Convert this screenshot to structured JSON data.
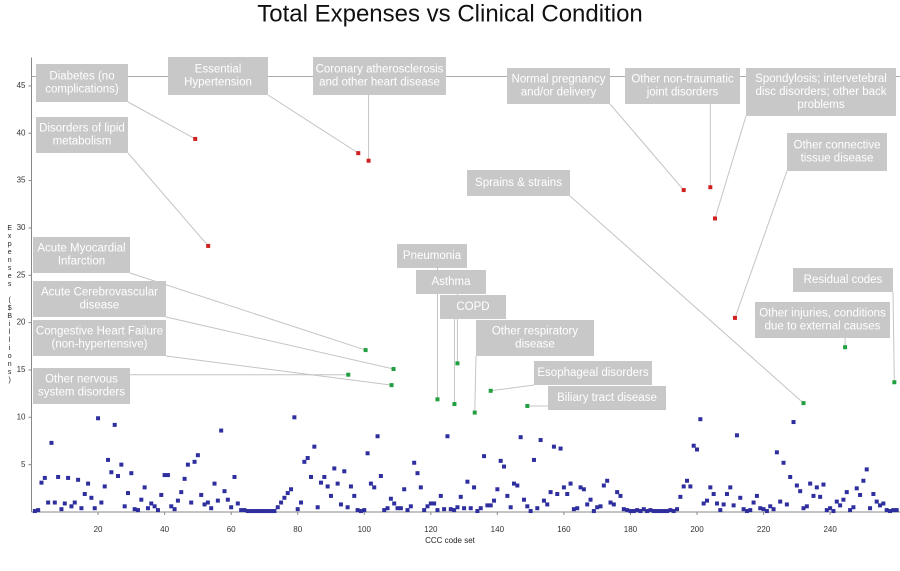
{
  "chart_data": {
    "type": "scatter",
    "title": "Total Expenses vs Clinical Condition",
    "x_label": "CCC code set",
    "y_label": "Expenses ($Billions)",
    "xlim": [
      0,
      261
    ],
    "ylim": [
      0,
      48
    ],
    "xticks": [
      20,
      40,
      60,
      80,
      100,
      120,
      140,
      160,
      180,
      200,
      220,
      240
    ],
    "yticks": [
      5,
      10,
      15,
      20,
      25,
      30,
      35,
      40,
      45
    ],
    "reference_line": 46,
    "series": [
      {
        "color": "#2e2e9e",
        "x": [
          1,
          2,
          3,
          4,
          5,
          6,
          7,
          8,
          9,
          10,
          11,
          12,
          13,
          14,
          15,
          16,
          17,
          18,
          19,
          20,
          21,
          22,
          23,
          24,
          25,
          26,
          27,
          28,
          29,
          30,
          31,
          32,
          33,
          34,
          35,
          36,
          37,
          38,
          39,
          40,
          41,
          42,
          43,
          44,
          45,
          46,
          47,
          48,
          49,
          50,
          51,
          52,
          53,
          54,
          55,
          56,
          57,
          58,
          59,
          60,
          61,
          62,
          63,
          64,
          65,
          66,
          67,
          68,
          69,
          70,
          71,
          72,
          73,
          74,
          75,
          76,
          77,
          78,
          79,
          80,
          81,
          82,
          83,
          84,
          85,
          86,
          87,
          88,
          89,
          90,
          91,
          92,
          93,
          94,
          95,
          96,
          97,
          98,
          99,
          100,
          101,
          102,
          103,
          104,
          105,
          106,
          107,
          108,
          109,
          110,
          111,
          112,
          113,
          114,
          115,
          116,
          117,
          118,
          119,
          120,
          121,
          122,
          123,
          124,
          125,
          126,
          127,
          128,
          129,
          130,
          131,
          132,
          133,
          134,
          135,
          136,
          137,
          138,
          139,
          140,
          141,
          142,
          143,
          144,
          145,
          146,
          147,
          148,
          149,
          150,
          151,
          152,
          153,
          154,
          155,
          156,
          157,
          158,
          159,
          160,
          161,
          162,
          163,
          164,
          165,
          166,
          167,
          168,
          169,
          170,
          171,
          172,
          173,
          174,
          175,
          176,
          177,
          178,
          179,
          180,
          181,
          182,
          183,
          184,
          185,
          186,
          187,
          188,
          189,
          190,
          191,
          192,
          193,
          194,
          195,
          196,
          197,
          198,
          199,
          200,
          201,
          202,
          203,
          204,
          205,
          206,
          207,
          208,
          209,
          210,
          211,
          212,
          213,
          214,
          215,
          216,
          217,
          218,
          219,
          220,
          221,
          222,
          223,
          224,
          225,
          226,
          227,
          228,
          229,
          230,
          231,
          232,
          233,
          234,
          235,
          236,
          237,
          238,
          239,
          240,
          241,
          242,
          243,
          244,
          245,
          246,
          247,
          248,
          249,
          250,
          251,
          252,
          253,
          254,
          255,
          256,
          257,
          258,
          259,
          260
        ],
        "values": [
          0.1,
          0.2,
          3.1,
          3.6,
          1.0,
          7.3,
          1.0,
          3.7,
          0.3,
          0.9,
          3.6,
          0.6,
          1.0,
          3.4,
          0.4,
          1.9,
          3.0,
          1.5,
          0.4,
          9.9,
          1.0,
          2.7,
          5.5,
          4.2,
          9.2,
          3.8,
          5.0,
          0.6,
          2.0,
          4.1,
          0.3,
          0.2,
          1.3,
          2.6,
          0.4,
          0.9,
          0.6,
          0.2,
          1.8,
          3.9,
          3.9,
          0.6,
          0.3,
          1.2,
          2.1,
          3.5,
          5.0,
          1.0,
          5.3,
          6.0,
          1.8,
          0.8,
          1.0,
          0.4,
          3.0,
          1.2,
          8.6,
          2.2,
          1.3,
          0.5,
          3.7,
          0.9,
          0.2,
          0.2,
          0.1,
          0.1,
          0.1,
          0.1,
          0.1,
          0.1,
          0.1,
          0.1,
          0.1,
          0.5,
          1.0,
          1.5,
          2.0,
          2.4,
          10.0,
          0.3,
          1.0,
          5.3,
          5.7,
          3.7,
          6.9,
          0.5,
          3.1,
          3.7,
          2.7,
          1.7,
          4.6,
          3.0,
          0.8,
          4.3,
          0.5,
          2.7,
          1.7,
          0.2,
          0.1,
          0.2,
          6.2,
          3.0,
          2.6,
          8.0,
          3.8,
          0.2,
          0.4,
          1.4,
          0.9,
          0.4,
          0.4,
          2.4,
          0.2,
          0.6,
          5.2,
          4.1,
          2.6,
          0.2,
          0.6,
          0.9,
          0.9,
          0.2,
          1.7,
          0.3,
          8.0,
          0.3,
          0.2,
          0.5,
          1.6,
          0.4,
          3.2,
          0.4,
          2.6,
          0.1,
          0.4,
          5.9,
          0.7,
          0.7,
          1.2,
          2.4,
          5.4,
          4.8,
          1.7,
          0.5,
          3.0,
          2.8,
          7.9,
          1.3,
          0.6,
          0.1,
          5.5,
          0.4,
          7.6,
          1.2,
          0.8,
          2.1,
          6.9,
          1.9,
          6.7,
          2.6,
          1.9,
          3.0,
          0.3,
          0.4,
          2.6,
          2.4,
          0.8,
          1.3,
          0.1,
          0.5,
          0.6,
          2.8,
          3.3,
          1.0,
          0.8,
          2.1,
          1.7,
          0.3,
          0.2,
          0.1,
          0.1,
          0.2,
          0.1,
          0.3,
          0.1,
          0.2,
          0.1,
          0.1,
          0.1,
          0.1,
          0.1,
          0.2,
          0.1,
          0.3,
          1.6,
          2.7,
          3.3,
          2.7,
          7.0,
          6.6,
          9.8,
          0.9,
          1.2,
          2.6,
          1.9,
          0.9,
          0.2,
          0.8,
          1.9,
          2.6,
          0.7,
          8.1,
          1.5,
          0.3,
          0.1,
          0.2,
          1.0,
          1.7,
          0.4,
          0.3,
          0.1,
          0.6,
          0.3,
          6.3,
          1.1,
          5.2,
          0.8,
          3.7,
          9.5,
          2.8,
          2.2,
          0.4,
          0.6,
          3.0,
          1.7,
          2.6,
          1.6,
          2.9,
          0.2,
          0.4,
          0.1,
          1.1,
          0.7,
          1.3,
          2.1,
          0.2,
          0.5,
          2.5,
          1.8,
          3.3,
          4.5,
          0.4,
          1.9,
          1.1,
          0.7,
          0.9,
          0.2,
          0.1,
          0.2,
          0.2
        ]
      }
    ],
    "annotations": [
      {
        "label": [
          "Diabetes (no",
          "complications)"
        ],
        "x": 49.2,
        "y": 39.4,
        "color": "#d02020"
      },
      {
        "label": [
          "Disorders of lipid",
          "metabolism"
        ],
        "x": 53.1,
        "y": 28.1,
        "color": "#d02020"
      },
      {
        "label": [
          "Essential",
          "Hypertension"
        ],
        "x": 98.2,
        "y": 37.9,
        "color": "#d02020"
      },
      {
        "label": [
          "Coronary atherosclerosis",
          "and other heart disease"
        ],
        "x": 101.3,
        "y": 37.1,
        "color": "#d02020"
      },
      {
        "label": [
          "Normal pregnancy",
          "and/or delivery"
        ],
        "x": 196,
        "y": 34,
        "color": "#d02020"
      },
      {
        "label": [
          "Other non-traumatic",
          "joint disorders"
        ],
        "x": 204,
        "y": 34.3,
        "color": "#d02020"
      },
      {
        "label": [
          "Spondylosis; intervetebral",
          "disc disorders; other back",
          "problems"
        ],
        "x": 205.4,
        "y": 31,
        "color": "#d02020"
      },
      {
        "label": [
          "Other connective",
          "tissue disease"
        ],
        "x": 211.4,
        "y": 20.5,
        "color": "#d02020"
      },
      {
        "label": [
          "Sprains & strains"
        ],
        "x": 232,
        "y": 11.5,
        "color": "#20a040"
      },
      {
        "label": [
          "Acute Myocardial",
          "Infarction"
        ],
        "x": 100.4,
        "y": 17.1,
        "color": "#20a040"
      },
      {
        "label": [
          "Acute Cerebrovascular",
          "disease"
        ],
        "x": 108.8,
        "y": 15.1,
        "color": "#20a040"
      },
      {
        "label": [
          "Congestive Heart Failure",
          "(non-hypertensive)"
        ],
        "x": 108.2,
        "y": 13.4,
        "color": "#20a040"
      },
      {
        "label": [
          "Other nervous",
          "system disorders"
        ],
        "x": 95.2,
        "y": 14.5,
        "color": "#20a040"
      },
      {
        "label": [
          "Pneumonia"
        ],
        "x": 122,
        "y": 11.9,
        "color": "#20a040"
      },
      {
        "label": [
          "Asthma"
        ],
        "x": 128,
        "y": 15.7,
        "color": "#20a040"
      },
      {
        "label": [
          "COPD"
        ],
        "x": 127.1,
        "y": 11.4,
        "color": "#20a040"
      },
      {
        "label": [
          "Other respiratory",
          "disease"
        ],
        "x": 133.2,
        "y": 10.5,
        "color": "#20a040"
      },
      {
        "label": [
          "Esophageal disorders"
        ],
        "x": 138,
        "y": 12.8,
        "color": "#20a040"
      },
      {
        "label": [
          "Biliary tract disease"
        ],
        "x": 149,
        "y": 11.2,
        "color": "#20a040"
      },
      {
        "label": [
          "Residual codes"
        ],
        "x": 259.3,
        "y": 13.7,
        "color": "#20a040"
      },
      {
        "label": [
          "Other injuries, conditions",
          "due to external causes"
        ],
        "x": 244.5,
        "y": 17.4,
        "color": "#20a040"
      }
    ]
  }
}
